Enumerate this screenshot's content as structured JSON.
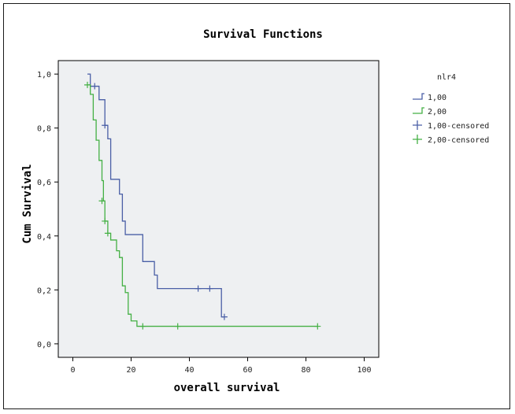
{
  "chart_data": {
    "type": "line",
    "title": "Survival Functions",
    "xlabel": "overall survival",
    "ylabel": "Cum Survival",
    "xlim": [
      -5,
      105
    ],
    "ylim": [
      -0.05,
      1.05
    ],
    "x_ticks": [
      "0",
      "20",
      "40",
      "60",
      "80",
      "100"
    ],
    "x_tick_values": [
      0,
      20,
      40,
      60,
      80,
      100
    ],
    "y_ticks": [
      "0,0",
      "0,2",
      "0,4",
      "0,6",
      "0,8",
      "1,0"
    ],
    "y_tick_values": [
      0,
      0.2,
      0.4,
      0.6,
      0.8,
      1.0
    ],
    "grid": false,
    "plot_background": "#eef0f2",
    "legend": {
      "title": "nlr4",
      "position": "right",
      "entries": [
        "1,00",
        "2,00",
        "1,00-censored",
        "2,00-censored"
      ]
    },
    "series": [
      {
        "name": "1,00",
        "color": "#4a5fa6",
        "steps": [
          [
            5,
            1.0
          ],
          [
            6,
            0.955
          ],
          [
            9,
            0.905
          ],
          [
            11,
            0.81
          ],
          [
            12,
            0.76
          ],
          [
            13,
            0.61
          ],
          [
            16,
            0.555
          ],
          [
            17,
            0.455
          ],
          [
            18,
            0.405
          ],
          [
            24,
            0.305
          ],
          [
            28,
            0.255
          ],
          [
            29,
            0.205
          ],
          [
            51,
            0.1
          ],
          [
            52,
            0.1
          ]
        ],
        "censored": [
          [
            7.5,
            0.955
          ],
          [
            11,
            0.81
          ],
          [
            43,
            0.205
          ],
          [
            47,
            0.205
          ],
          [
            52,
            0.1
          ]
        ]
      },
      {
        "name": "2,00",
        "color": "#44b044",
        "steps": [
          [
            5,
            0.96
          ],
          [
            6,
            0.925
          ],
          [
            7,
            0.83
          ],
          [
            8,
            0.755
          ],
          [
            9,
            0.68
          ],
          [
            10,
            0.605
          ],
          [
            10.5,
            0.53
          ],
          [
            11,
            0.455
          ],
          [
            12,
            0.41
          ],
          [
            13,
            0.385
          ],
          [
            15,
            0.345
          ],
          [
            16,
            0.32
          ],
          [
            17,
            0.215
          ],
          [
            18,
            0.19
          ],
          [
            19,
            0.11
          ],
          [
            20,
            0.085
          ],
          [
            22,
            0.065
          ],
          [
            84,
            0.065
          ]
        ],
        "censored": [
          [
            5,
            0.96
          ],
          [
            10,
            0.53
          ],
          [
            11,
            0.455
          ],
          [
            12,
            0.41
          ],
          [
            24,
            0.065
          ],
          [
            36,
            0.065
          ],
          [
            84,
            0.065
          ]
        ]
      }
    ]
  }
}
